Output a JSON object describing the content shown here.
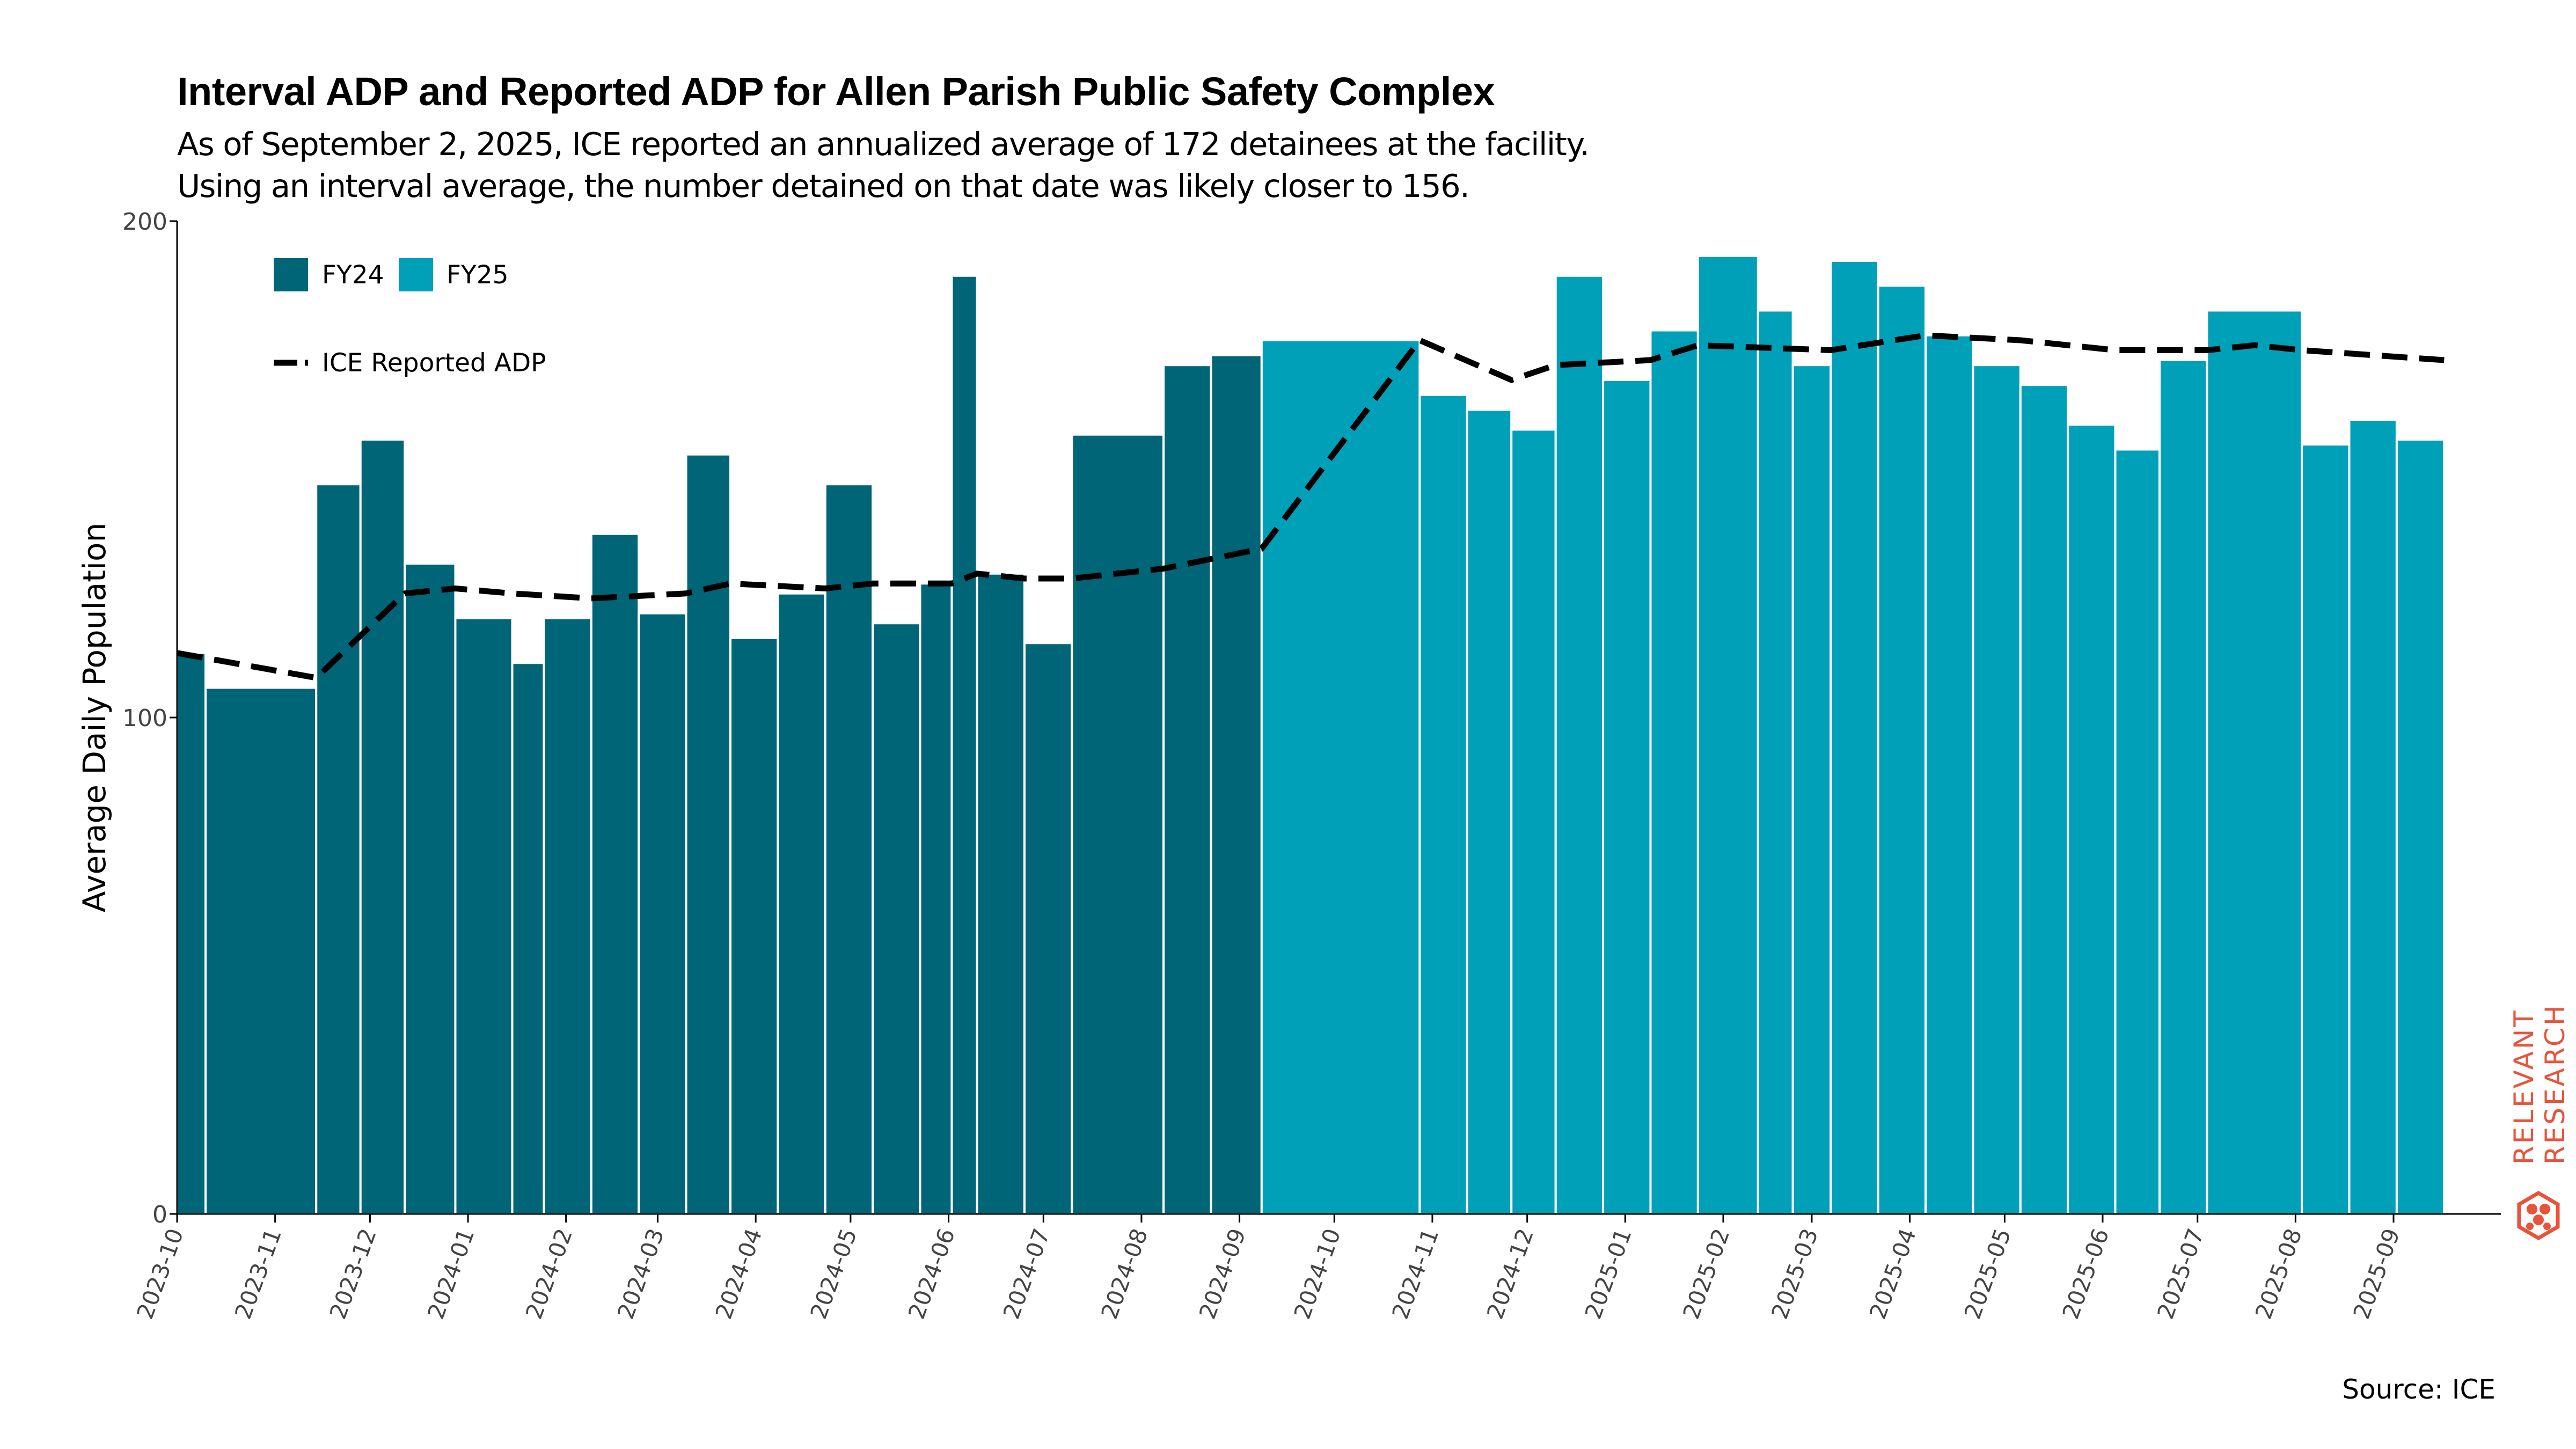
{
  "title": "Interval ADP and Reported ADP for Allen Parish Public Safety Complex",
  "subtitle_lines": [
    "As of September 2, 2025, ICE reported an annualized average of 172 detainees at the facility.",
    "Using an interval average, the number detained on that date was likely closer to 156."
  ],
  "source": "Source: ICE",
  "logo": {
    "text_line1": "RELEVANT",
    "text_line2": "RESEARCH",
    "color": "#e8533a"
  },
  "colors": {
    "fy24": "#006577",
    "fy25": "#00a0b8",
    "line": "#000000"
  },
  "chart_data": {
    "type": "bar",
    "ylabel": "Average Daily Population",
    "xlabel": "",
    "ylim": [
      0,
      200
    ],
    "yticks": [
      0,
      100,
      200
    ],
    "x_ticks": [
      "2023-10",
      "2023-11",
      "2023-12",
      "2024-01",
      "2024-02",
      "2024-03",
      "2024-04",
      "2024-05",
      "2024-06",
      "2024-07",
      "2024-08",
      "2024-09",
      "2024-10",
      "2024-11",
      "2024-12",
      "2025-01",
      "2025-02",
      "2025-03",
      "2025-04",
      "2025-05",
      "2025-06",
      "2025-07",
      "2025-08",
      "2025-09"
    ],
    "legend": [
      {
        "name": "FY24",
        "color": "#006577",
        "kind": "bar"
      },
      {
        "name": "FY25",
        "color": "#00a0b8",
        "kind": "bar"
      },
      {
        "name": "ICE Reported ADP",
        "color": "#000000",
        "kind": "dashed-line"
      }
    ],
    "legend_position": "top-left",
    "grid": false,
    "series": [
      {
        "name": "FY24",
        "intervals": [
          {
            "start": "2023-10-01",
            "end": "2023-10-10",
            "value": 113
          },
          {
            "start": "2023-10-10",
            "end": "2023-11-14",
            "value": 106
          },
          {
            "start": "2023-11-14",
            "end": "2023-11-28",
            "value": 147
          },
          {
            "start": "2023-11-28",
            "end": "2023-12-12",
            "value": 156
          },
          {
            "start": "2023-12-12",
            "end": "2023-12-28",
            "value": 131
          },
          {
            "start": "2023-12-28",
            "end": "2024-01-15",
            "value": 120
          },
          {
            "start": "2024-01-15",
            "end": "2024-01-25",
            "value": 111
          },
          {
            "start": "2024-01-25",
            "end": "2024-02-09",
            "value": 120
          },
          {
            "start": "2024-02-09",
            "end": "2024-02-24",
            "value": 137
          },
          {
            "start": "2024-02-24",
            "end": "2024-03-10",
            "value": 121
          },
          {
            "start": "2024-03-10",
            "end": "2024-03-24",
            "value": 153
          },
          {
            "start": "2024-03-24",
            "end": "2024-04-08",
            "value": 116
          },
          {
            "start": "2024-04-08",
            "end": "2024-04-23",
            "value": 125
          },
          {
            "start": "2024-04-23",
            "end": "2024-05-08",
            "value": 147
          },
          {
            "start": "2024-05-08",
            "end": "2024-05-23",
            "value": 119
          },
          {
            "start": "2024-05-23",
            "end": "2024-06-02",
            "value": 127
          },
          {
            "start": "2024-06-02",
            "end": "2024-06-10",
            "value": 189
          },
          {
            "start": "2024-06-10",
            "end": "2024-06-25",
            "value": 129
          },
          {
            "start": "2024-06-25",
            "end": "2024-07-10",
            "value": 115
          },
          {
            "start": "2024-07-10",
            "end": "2024-08-08",
            "value": 157
          },
          {
            "start": "2024-08-08",
            "end": "2024-08-23",
            "value": 171
          },
          {
            "start": "2024-08-23",
            "end": "2024-09-08",
            "value": 173
          }
        ]
      },
      {
        "name": "FY25",
        "intervals": [
          {
            "start": "2024-09-08",
            "end": "2024-10-28",
            "value": 176
          },
          {
            "start": "2024-10-28",
            "end": "2024-11-12",
            "value": 165
          },
          {
            "start": "2024-11-12",
            "end": "2024-11-26",
            "value": 162
          },
          {
            "start": "2024-11-26",
            "end": "2024-12-10",
            "value": 158
          },
          {
            "start": "2024-12-10",
            "end": "2024-12-25",
            "value": 189
          },
          {
            "start": "2024-12-25",
            "end": "2025-01-09",
            "value": 168
          },
          {
            "start": "2025-01-09",
            "end": "2025-01-24",
            "value": 178
          },
          {
            "start": "2025-01-24",
            "end": "2025-02-12",
            "value": 193
          },
          {
            "start": "2025-02-12",
            "end": "2025-02-23",
            "value": 182
          },
          {
            "start": "2025-02-23",
            "end": "2025-03-07",
            "value": 171
          },
          {
            "start": "2025-03-07",
            "end": "2025-03-22",
            "value": 192
          },
          {
            "start": "2025-03-22",
            "end": "2025-04-06",
            "value": 187
          },
          {
            "start": "2025-04-06",
            "end": "2025-04-21",
            "value": 177
          },
          {
            "start": "2025-04-21",
            "end": "2025-05-06",
            "value": 171
          },
          {
            "start": "2025-05-06",
            "end": "2025-05-21",
            "value": 167
          },
          {
            "start": "2025-05-21",
            "end": "2025-06-05",
            "value": 159
          },
          {
            "start": "2025-06-05",
            "end": "2025-06-19",
            "value": 154
          },
          {
            "start": "2025-06-19",
            "end": "2025-07-04",
            "value": 172
          },
          {
            "start": "2025-07-04",
            "end": "2025-08-03",
            "value": 182
          },
          {
            "start": "2025-08-03",
            "end": "2025-08-18",
            "value": 155
          },
          {
            "start": "2025-08-18",
            "end": "2025-09-02",
            "value": 160
          },
          {
            "start": "2025-09-02",
            "end": "2025-09-17",
            "value": 156
          }
        ]
      },
      {
        "name": "ICE Reported ADP",
        "points": [
          {
            "x": "2023-10-01",
            "y": 113
          },
          {
            "x": "2023-11-14",
            "y": 108
          },
          {
            "x": "2023-12-12",
            "y": 125
          },
          {
            "x": "2023-12-28",
            "y": 126
          },
          {
            "x": "2024-01-15",
            "y": 125
          },
          {
            "x": "2024-02-09",
            "y": 124
          },
          {
            "x": "2024-03-10",
            "y": 125
          },
          {
            "x": "2024-03-24",
            "y": 127
          },
          {
            "x": "2024-04-23",
            "y": 126
          },
          {
            "x": "2024-05-08",
            "y": 127
          },
          {
            "x": "2024-06-02",
            "y": 127
          },
          {
            "x": "2024-06-10",
            "y": 129
          },
          {
            "x": "2024-06-25",
            "y": 128
          },
          {
            "x": "2024-07-10",
            "y": 128
          },
          {
            "x": "2024-08-08",
            "y": 130
          },
          {
            "x": "2024-09-08",
            "y": 134
          },
          {
            "x": "2024-10-28",
            "y": 176
          },
          {
            "x": "2024-11-26",
            "y": 168
          },
          {
            "x": "2024-12-10",
            "y": 171
          },
          {
            "x": "2025-01-09",
            "y": 172
          },
          {
            "x": "2025-01-24",
            "y": 175
          },
          {
            "x": "2025-03-07",
            "y": 174
          },
          {
            "x": "2025-04-06",
            "y": 177
          },
          {
            "x": "2025-05-06",
            "y": 176
          },
          {
            "x": "2025-06-05",
            "y": 174
          },
          {
            "x": "2025-07-04",
            "y": 174
          },
          {
            "x": "2025-07-19",
            "y": 175
          },
          {
            "x": "2025-08-03",
            "y": 174
          },
          {
            "x": "2025-09-17",
            "y": 172
          }
        ]
      }
    ]
  }
}
